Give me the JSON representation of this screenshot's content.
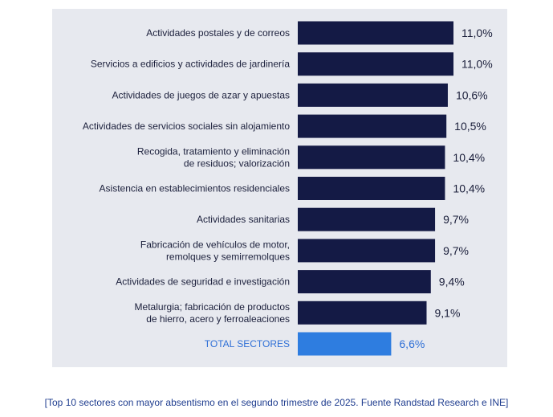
{
  "caption": "[Top 10 sectores con mayor absentismo en el segundo trimestre de 2025. Fuente Randstad Research e INE]",
  "colors": {
    "panel_background": "#e7e9ef",
    "bar": "#141a45",
    "total_bar": "#2e7de0",
    "total_text": "#2e6fd6",
    "caption": "#1f3d8f"
  },
  "chart_data": {
    "type": "bar",
    "orientation": "horizontal",
    "value_format": "percent-comma-decimal",
    "categories": [
      [
        "Actividades postales y de correos"
      ],
      [
        "Servicios a edificios y actividades de jardinería"
      ],
      [
        "Actividades de juegos de azar y apuestas"
      ],
      [
        "Actividades de servicios sociales sin alojamiento"
      ],
      [
        "Recogida, tratamiento y eliminación",
        "de residuos; valorización"
      ],
      [
        "Asistencia en establecimientos residenciales"
      ],
      [
        "Actividades sanitarias"
      ],
      [
        "Fabricación de vehículos de motor,",
        "remolques y semirremolques"
      ],
      [
        "Actividades de seguridad e investigación"
      ],
      [
        "Metalurgia; fabricación de productos",
        "de hierro, acero y ferroaleaciones"
      ],
      [
        "TOTAL SECTORES"
      ]
    ],
    "values": [
      11.0,
      11.0,
      10.6,
      10.5,
      10.4,
      10.4,
      9.7,
      9.7,
      9.4,
      9.1,
      6.6
    ],
    "value_labels": [
      "11,0%",
      "11,0%",
      "10,6%",
      "10,5%",
      "10,4%",
      "10,4%",
      "9,7%",
      "9,7%",
      "9,4%",
      "9,1%",
      "6,6%"
    ],
    "highlight_index": 10,
    "xlim": [
      0,
      11.0
    ],
    "grid": false,
    "legend": "none"
  }
}
